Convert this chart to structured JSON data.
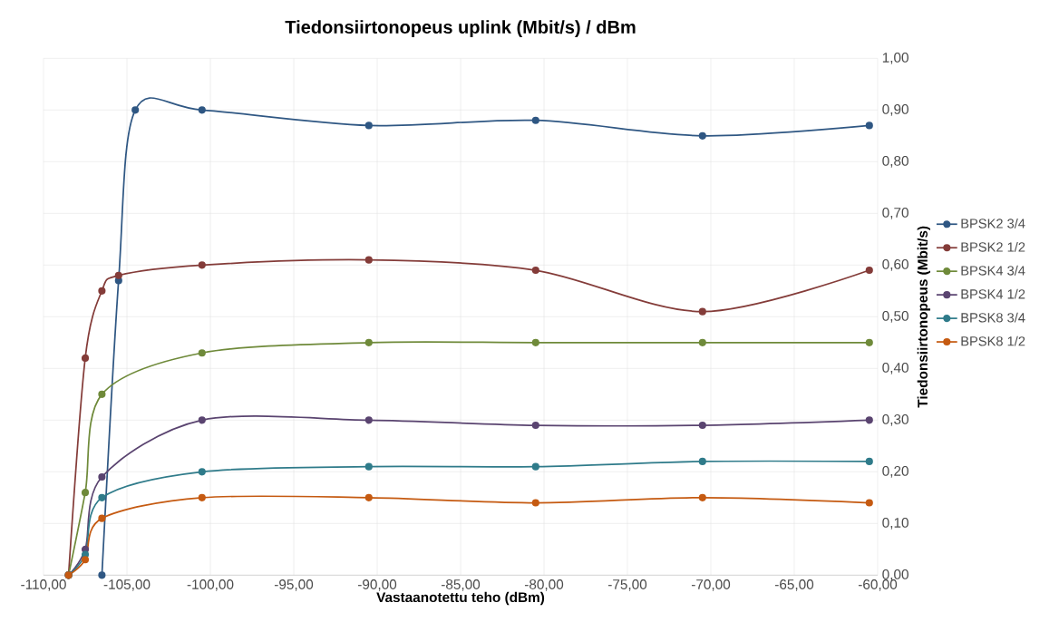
{
  "chart_data": {
    "type": "line",
    "title": "Tiedonsiirtonopeus uplink (Mbit/s) / dBm",
    "xlabel": "Vastaanotettu teho (dBm)",
    "ylabel": "Tiedonsiirtonopeus (Mbit/s)",
    "xlim": [
      -110,
      -60
    ],
    "ylim": [
      0,
      1
    ],
    "xticks": [
      {
        "value": -110,
        "label": "-110,00"
      },
      {
        "value": -105,
        "label": "-105,00"
      },
      {
        "value": -100,
        "label": "-100,00"
      },
      {
        "value": -95,
        "label": "-95,00"
      },
      {
        "value": -90,
        "label": "-90,00"
      },
      {
        "value": -85,
        "label": "-85,00"
      },
      {
        "value": -80,
        "label": "-80,00"
      },
      {
        "value": -75,
        "label": "-75,00"
      },
      {
        "value": -70,
        "label": "-70,00"
      },
      {
        "value": -65,
        "label": "-65,00"
      },
      {
        "value": -60,
        "label": "-60,00"
      }
    ],
    "yticks": [
      {
        "value": 0,
        "label": "0,00"
      },
      {
        "value": 0.1,
        "label": "0,10"
      },
      {
        "value": 0.2,
        "label": "0,20"
      },
      {
        "value": 0.3,
        "label": "0,30"
      },
      {
        "value": 0.4,
        "label": "0,40"
      },
      {
        "value": 0.5,
        "label": "0,50"
      },
      {
        "value": 0.6,
        "label": "0,60"
      },
      {
        "value": 0.7,
        "label": "0,70"
      },
      {
        "value": 0.8,
        "label": "0,80"
      },
      {
        "value": 0.9,
        "label": "0,90"
      },
      {
        "value": 1,
        "label": "1,00"
      }
    ],
    "grid": true,
    "legend": "right",
    "marker": "circle",
    "line_style": "solid",
    "series": [
      {
        "name": "BPSK2 3/4",
        "color": "#2f5783",
        "x": [
          -106.5,
          -105.5,
          -104.5,
          -100.5,
          -90.5,
          -80.5,
          -70.5,
          -60.5
        ],
        "values": [
          0,
          0.57,
          0.9,
          0.9,
          0.87,
          0.88,
          0.85,
          0.87
        ]
      },
      {
        "name": "BPSK2 1/2",
        "color": "#843c39",
        "x": [
          -108.5,
          -107.5,
          -106.5,
          -105.5,
          -100.5,
          -90.5,
          -80.5,
          -70.5,
          -60.5
        ],
        "values": [
          0,
          0.42,
          0.55,
          0.58,
          0.6,
          0.61,
          0.59,
          0.51,
          0.59
        ]
      },
      {
        "name": "BPSK4 3/4",
        "color": "#6f8a3a",
        "x": [
          -108.5,
          -107.5,
          -106.5,
          -100.5,
          -90.5,
          -80.5,
          -70.5,
          -60.5
        ],
        "values": [
          0,
          0.16,
          0.35,
          0.43,
          0.45,
          0.45,
          0.45,
          0.45
        ]
      },
      {
        "name": "BPSK4 1/2",
        "color": "#5a4470",
        "x": [
          -108.5,
          -107.5,
          -106.5,
          -100.5,
          -90.5,
          -80.5,
          -70.5,
          -60.5
        ],
        "values": [
          0,
          0.05,
          0.19,
          0.3,
          0.3,
          0.29,
          0.29,
          0.3
        ]
      },
      {
        "name": "BPSK8 3/4",
        "color": "#2f7b8a",
        "x": [
          -108.5,
          -107.5,
          -106.5,
          -100.5,
          -90.5,
          -80.5,
          -70.5,
          -60.5
        ],
        "values": [
          0,
          0.04,
          0.15,
          0.2,
          0.21,
          0.21,
          0.22,
          0.22
        ]
      },
      {
        "name": "BPSK8 1/2",
        "color": "#c55a11",
        "x": [
          -108.5,
          -107.5,
          -106.5,
          -100.5,
          -90.5,
          -80.5,
          -70.5,
          -60.5
        ],
        "values": [
          0,
          0.03,
          0.11,
          0.15,
          0.15,
          0.14,
          0.15,
          0.14
        ]
      }
    ]
  }
}
